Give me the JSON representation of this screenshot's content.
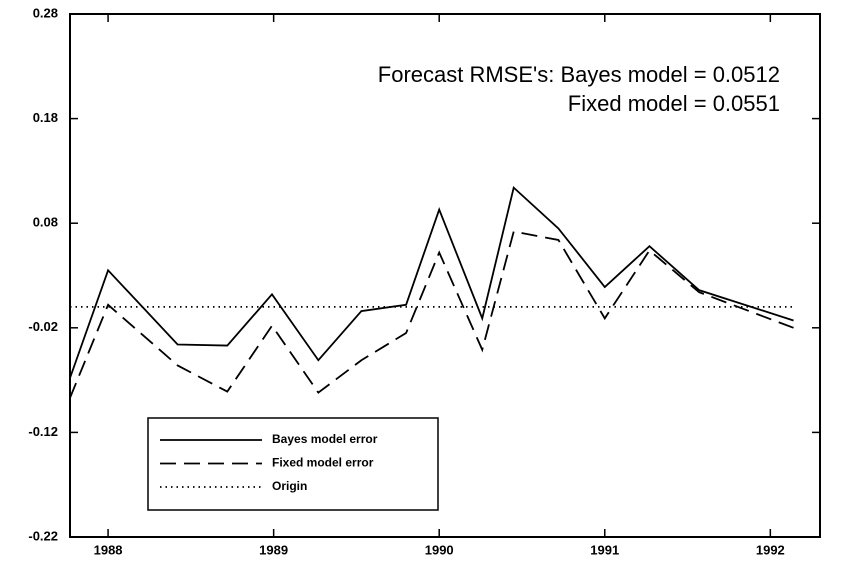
{
  "chart_data": {
    "type": "line",
    "annotations": [
      "Forecast RMSE's: Bayes model = 0.0512",
      "Fixed model = 0.0551"
    ],
    "x": [
      1987.77,
      1988.0,
      1988.42,
      1988.72,
      1988.99,
      1989.27,
      1989.53,
      1989.8,
      1990.0,
      1990.26,
      1990.45,
      1990.72,
      1991.0,
      1991.27,
      1991.57,
      1992.14
    ],
    "series": [
      {
        "name": "Bayes model error",
        "color": "#000000",
        "dash": "solid",
        "values": [
          -0.068,
          0.035,
          -0.036,
          -0.037,
          0.012,
          -0.051,
          -0.004,
          0.002,
          0.093,
          -0.011,
          0.114,
          0.075,
          0.019,
          0.058,
          0.016,
          -0.013
        ]
      },
      {
        "name": "Fixed model error",
        "color": "#000000",
        "dash": "dashed",
        "values": [
          -0.087,
          0.002,
          -0.056,
          -0.081,
          -0.018,
          -0.082,
          -0.051,
          -0.025,
          0.052,
          -0.041,
          0.072,
          0.064,
          -0.011,
          0.054,
          0.014,
          -0.02
        ]
      },
      {
        "name": "Origin",
        "color": "#000000",
        "dash": "dotted",
        "values": [
          0,
          0,
          0,
          0,
          0,
          0,
          0,
          0,
          0,
          0,
          0,
          0,
          0,
          0,
          0,
          0
        ]
      }
    ],
    "xlim": [
      1987.77,
      1992.3
    ],
    "xticks": [
      1988,
      1989,
      1990,
      1991,
      1992
    ],
    "ylim": [
      -0.22,
      0.28
    ],
    "yticks": [
      -0.22,
      -0.12,
      -0.02,
      0.08,
      0.18,
      0.28
    ],
    "grid": false,
    "legend": "lower left"
  }
}
